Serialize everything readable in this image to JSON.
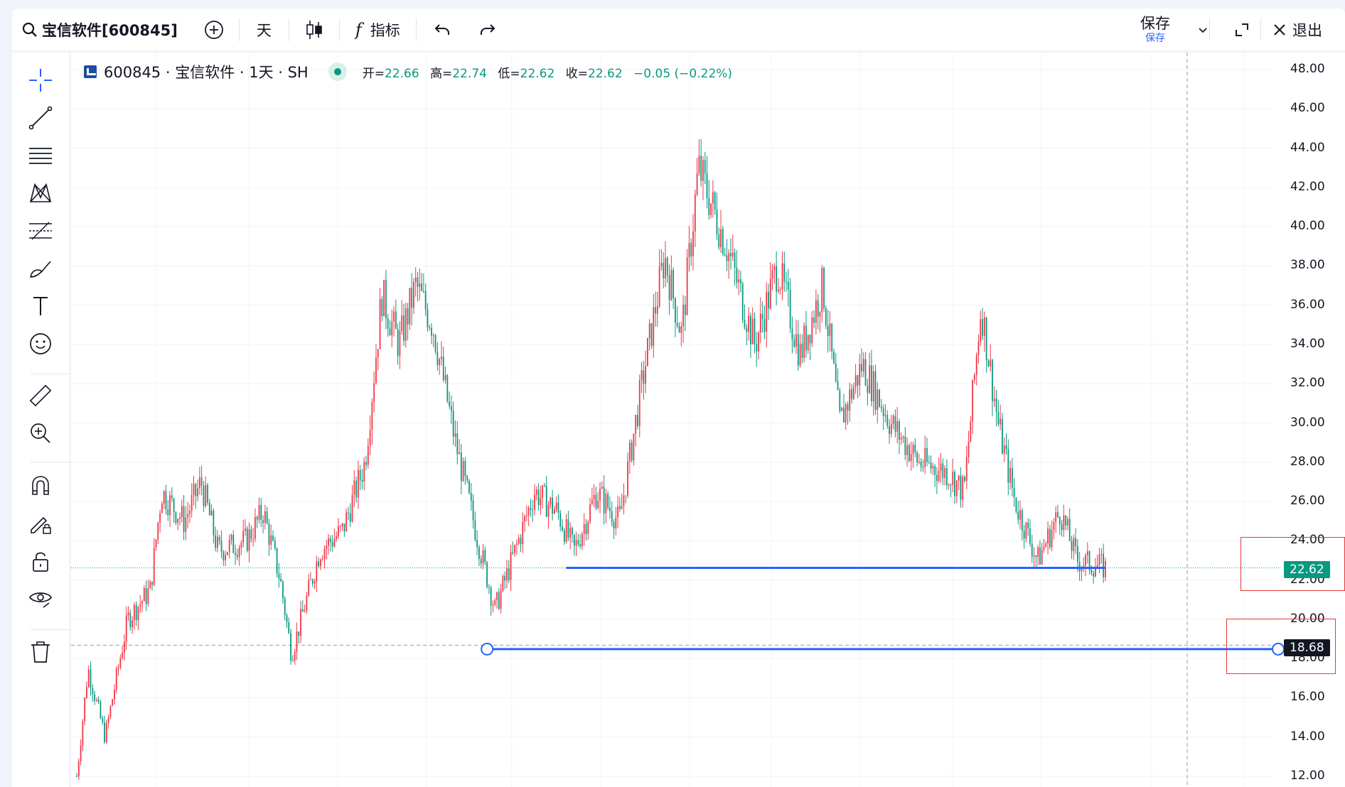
{
  "toolbar": {
    "symbol": "宝信软件[600845]",
    "interval": "天",
    "indicators_label": "指标",
    "save_label": "保存",
    "save_sublabel": "保存",
    "exit_label": "退出"
  },
  "legend": {
    "symbol_title": "600845 · 宝信软件 · 1天 · SH",
    "open_label": "开=",
    "open": "22.66",
    "high_label": "高=",
    "high": "22.74",
    "low_label": "低=",
    "low": "22.62",
    "close_label": "收=",
    "close": "22.62",
    "change": "−0.05 (−0.22%)"
  },
  "price_axis": {
    "ticks": [
      "48.00",
      "46.00",
      "44.00",
      "42.00",
      "40.00",
      "38.00",
      "36.00",
      "34.00",
      "32.00",
      "30.00",
      "28.00",
      "26.00",
      "24.00",
      "22.00",
      "20.00",
      "18.00",
      "16.00",
      "14.00",
      "12.00"
    ],
    "last_price_tag": "22.62",
    "crosshair_price_tag": "18.68"
  },
  "colors": {
    "up": "#f23645",
    "down": "#089981",
    "drawing_line": "#2962ff",
    "highlight_box": "#e53935"
  },
  "chart_data": {
    "type": "candlestick",
    "ylim": [
      11.5,
      48.5
    ],
    "last_price": 22.62,
    "crosshair_price": 18.68,
    "horizontal_lines": [
      {
        "price": 22.62,
        "from_bar": 0.433,
        "to_bar": 0.91
      },
      {
        "price": 18.48,
        "from_bar": 0.363,
        "to_bar": 1.0
      }
    ],
    "price_path": [
      {
        "t": 0.0,
        "p": 12.0
      },
      {
        "t": 0.01,
        "p": 17.5
      },
      {
        "t": 0.025,
        "p": 14.0
      },
      {
        "t": 0.045,
        "p": 20.0
      },
      {
        "t": 0.065,
        "p": 21.5
      },
      {
        "t": 0.075,
        "p": 26.5
      },
      {
        "t": 0.095,
        "p": 25.0
      },
      {
        "t": 0.11,
        "p": 27.0
      },
      {
        "t": 0.125,
        "p": 23.5
      },
      {
        "t": 0.15,
        "p": 24.0
      },
      {
        "t": 0.165,
        "p": 25.5
      },
      {
        "t": 0.18,
        "p": 22.0
      },
      {
        "t": 0.19,
        "p": 18.2
      },
      {
        "t": 0.215,
        "p": 23.5
      },
      {
        "t": 0.235,
        "p": 24.5
      },
      {
        "t": 0.255,
        "p": 28.0
      },
      {
        "t": 0.27,
        "p": 36.5
      },
      {
        "t": 0.285,
        "p": 34.0
      },
      {
        "t": 0.3,
        "p": 37.0
      },
      {
        "t": 0.315,
        "p": 35.0
      },
      {
        "t": 0.335,
        "p": 29.0
      },
      {
        "t": 0.355,
        "p": 24.0
      },
      {
        "t": 0.37,
        "p": 20.5
      },
      {
        "t": 0.385,
        "p": 23.0
      },
      {
        "t": 0.405,
        "p": 26.5
      },
      {
        "t": 0.425,
        "p": 25.5
      },
      {
        "t": 0.44,
        "p": 23.5
      },
      {
        "t": 0.46,
        "p": 26.5
      },
      {
        "t": 0.48,
        "p": 25.0
      },
      {
        "t": 0.5,
        "p": 32.0
      },
      {
        "t": 0.52,
        "p": 38.5
      },
      {
        "t": 0.535,
        "p": 34.5
      },
      {
        "t": 0.55,
        "p": 43.0
      },
      {
        "t": 0.575,
        "p": 39.0
      },
      {
        "t": 0.6,
        "p": 34.0
      },
      {
        "t": 0.62,
        "p": 38.0
      },
      {
        "t": 0.64,
        "p": 33.5
      },
      {
        "t": 0.66,
        "p": 37.0
      },
      {
        "t": 0.675,
        "p": 30.0
      },
      {
        "t": 0.695,
        "p": 33.0
      },
      {
        "t": 0.72,
        "p": 30.0
      },
      {
        "t": 0.745,
        "p": 28.0
      },
      {
        "t": 0.77,
        "p": 27.5
      },
      {
        "t": 0.785,
        "p": 26.5
      },
      {
        "t": 0.8,
        "p": 36.0
      },
      {
        "t": 0.815,
        "p": 30.0
      },
      {
        "t": 0.83,
        "p": 26.0
      },
      {
        "t": 0.85,
        "p": 23.0
      },
      {
        "t": 0.87,
        "p": 25.5
      },
      {
        "t": 0.885,
        "p": 23.0
      },
      {
        "t": 0.91,
        "p": 22.62
      }
    ]
  }
}
